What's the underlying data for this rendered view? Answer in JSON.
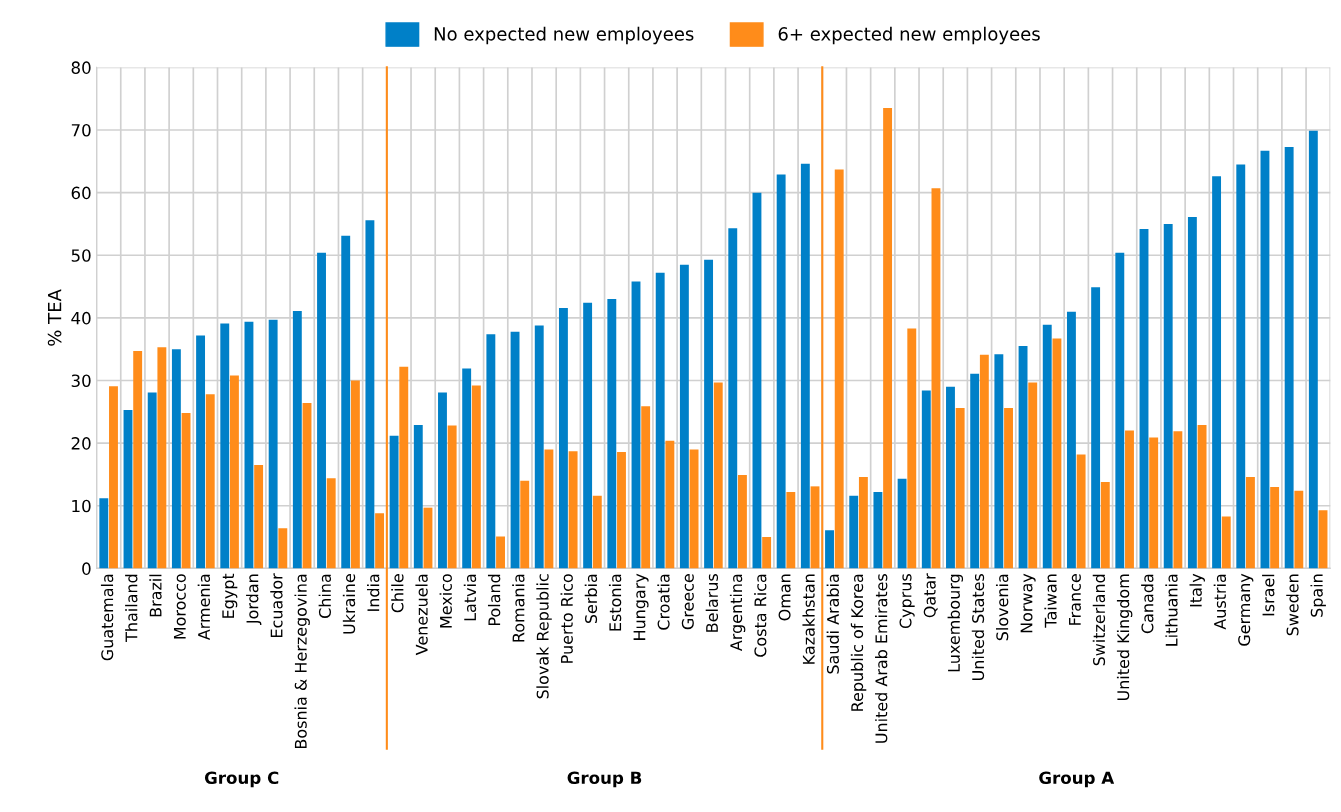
{
  "chart_data": {
    "type": "bar",
    "ylabel": "% TEA",
    "categories": [
      "Guatemala",
      "Thailand",
      "Brazil",
      "Morocco",
      "Armenia",
      "Egypt",
      "Jordan",
      "Ecuador",
      "Bosnia & Herzegovina",
      "China",
      "Ukraine",
      "India",
      "Chile",
      "Venezuela",
      "Mexico",
      "Latvia",
      "Poland",
      "Romania",
      "Slovak Republic",
      "Puerto Rico",
      "Serbia",
      "Estonia",
      "Hungary",
      "Croatia",
      "Greece",
      "Belarus",
      "Argentina",
      "Costa Rica",
      "Oman",
      "Kazakhstan",
      "Saudi Arabia",
      "Republic of Korea",
      "United Arab Emirates",
      "Cyprus",
      "Qatar",
      "Luxembourg",
      "United States",
      "Slovenia",
      "Norway",
      "Taiwan",
      "France",
      "Switzerland",
      "United Kingdom",
      "Canada",
      "Lithuania",
      "Italy",
      "Austria",
      "Germany",
      "Israel",
      "Sweden",
      "Spain"
    ],
    "series": [
      {
        "name": "No expected new employees",
        "color": "#0080c8",
        "values": [
          11.2,
          25.3,
          28.1,
          35.0,
          37.2,
          39.1,
          39.4,
          39.7,
          41.1,
          50.4,
          53.1,
          55.6,
          21.2,
          22.9,
          28.1,
          31.9,
          37.4,
          37.8,
          38.8,
          41.6,
          42.4,
          43.0,
          45.8,
          47.2,
          48.5,
          49.3,
          54.3,
          60.0,
          62.9,
          64.6,
          6.1,
          11.6,
          12.2,
          14.3,
          28.4,
          29.0,
          31.1,
          34.2,
          35.5,
          38.9,
          41.0,
          44.9,
          50.4,
          54.2,
          55.0,
          56.1,
          62.6,
          64.5,
          66.7,
          67.3,
          69.9
        ]
      },
      {
        "name": "6+ expected new employees",
        "color": "#ff8c1a",
        "values": [
          29.1,
          34.7,
          35.3,
          24.8,
          27.8,
          30.8,
          16.5,
          6.4,
          26.4,
          14.4,
          30.0,
          8.8,
          32.2,
          9.7,
          22.8,
          29.2,
          5.1,
          14.0,
          19.0,
          18.7,
          11.6,
          18.6,
          25.9,
          20.4,
          19.0,
          29.7,
          14.9,
          5.0,
          12.2,
          13.1,
          63.7,
          14.6,
          73.5,
          38.3,
          60.7,
          25.6,
          34.1,
          25.6,
          29.7,
          36.7,
          18.2,
          13.8,
          22.0,
          20.9,
          21.9,
          22.9,
          8.3,
          14.6,
          13.0,
          12.4,
          9.3
        ]
      }
    ],
    "ylim": [
      0,
      80
    ],
    "yticks": [
      0,
      10,
      20,
      30,
      40,
      50,
      60,
      70,
      80
    ],
    "grid": true,
    "legend": "top",
    "annotations": [
      "Group C",
      "Group B",
      "Group A"
    ]
  }
}
